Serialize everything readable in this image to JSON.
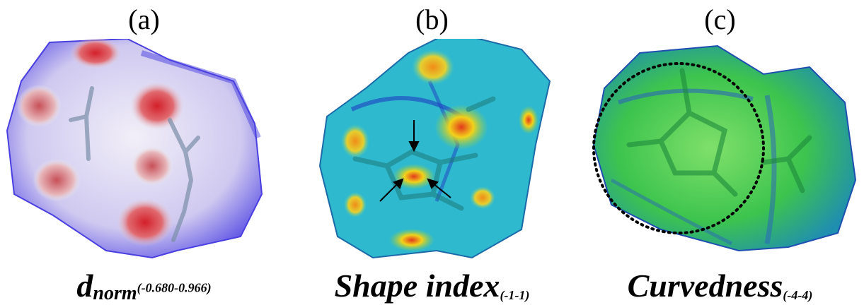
{
  "panels": [
    {
      "label": "(a)",
      "caption_base": "d",
      "caption_sub": "norm",
      "caption_range": "(-0.680-0.966)"
    },
    {
      "label": "(b)",
      "caption_base": "Shape index",
      "caption_range": "(-1-1)"
    },
    {
      "label": "(c)",
      "caption_base": "Curvedness",
      "caption_range": "(-4-4)"
    }
  ],
  "colors": {
    "dnorm_surface": "#dcd8f4",
    "dnorm_blue": "#4a3fe0",
    "dnorm_red": "#d4202a",
    "shape_base": "#2bb6d6",
    "shape_orange": "#f08c18",
    "shape_yellow": "#f2d21a",
    "curv_green": "#38c44a",
    "curv_blue": "#2a5fc0"
  }
}
